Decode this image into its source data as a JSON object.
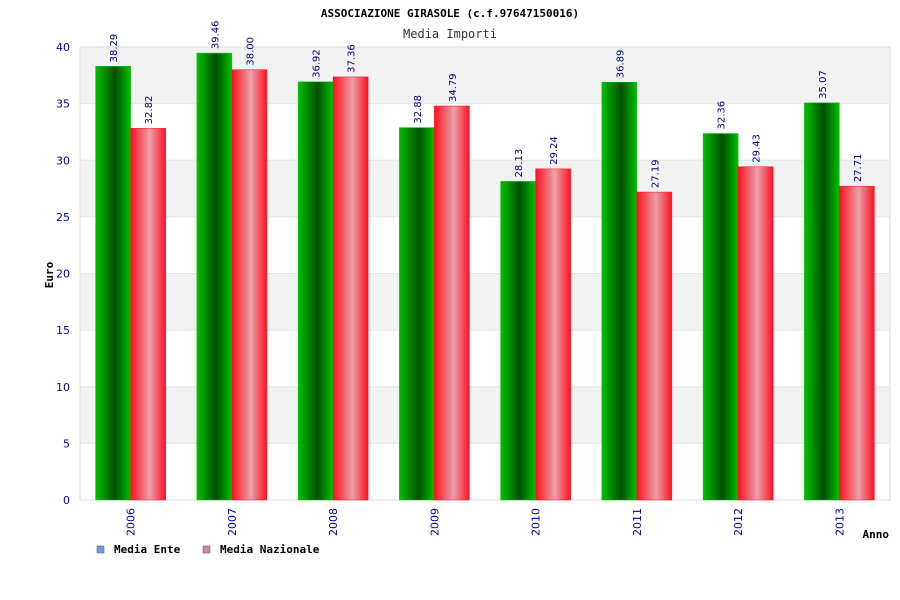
{
  "chart_data": {
    "type": "bar",
    "title": "ASSOCIAZIONE GIRASOLE (c.f.97647150016)",
    "subtitle": "Media Importi",
    "xlabel": "Anno",
    "ylabel": "Euro",
    "categories": [
      "2006",
      "2007",
      "2008",
      "2009",
      "2010",
      "2011",
      "2012",
      "2013"
    ],
    "ylim": [
      0,
      40
    ],
    "yticks": [
      "0",
      "5",
      "10",
      "15",
      "20",
      "25",
      "30",
      "35",
      "40"
    ],
    "grid": "horizontal alternating bands",
    "legend_position": "bottom-left",
    "series": [
      {
        "name": "Media Ente",
        "values": [
          38.29,
          39.46,
          36.92,
          32.88,
          28.13,
          36.89,
          32.36,
          35.07
        ],
        "labels": [
          "38.29",
          "39.46",
          "36.92",
          "32.88",
          "28.13",
          "36.89",
          "32.36",
          "35.07"
        ],
        "color": "#00c000",
        "dark": "#005000",
        "legend_color": "#6aa0e8"
      },
      {
        "name": "Media Nazionale",
        "values": [
          32.82,
          38.0,
          37.36,
          34.79,
          29.24,
          27.19,
          29.43,
          27.71
        ],
        "labels": [
          "32.82",
          "38.00",
          "37.36",
          "34.79",
          "29.24",
          "27.19",
          "29.43",
          "27.71"
        ],
        "color": "#ff1020",
        "dark": "#e8a0a8",
        "legend_color": "#d080b0"
      }
    ],
    "colors": {
      "axis_text": "#0000aa",
      "band": "#f2f2f2",
      "value_label": "#000080"
    }
  }
}
